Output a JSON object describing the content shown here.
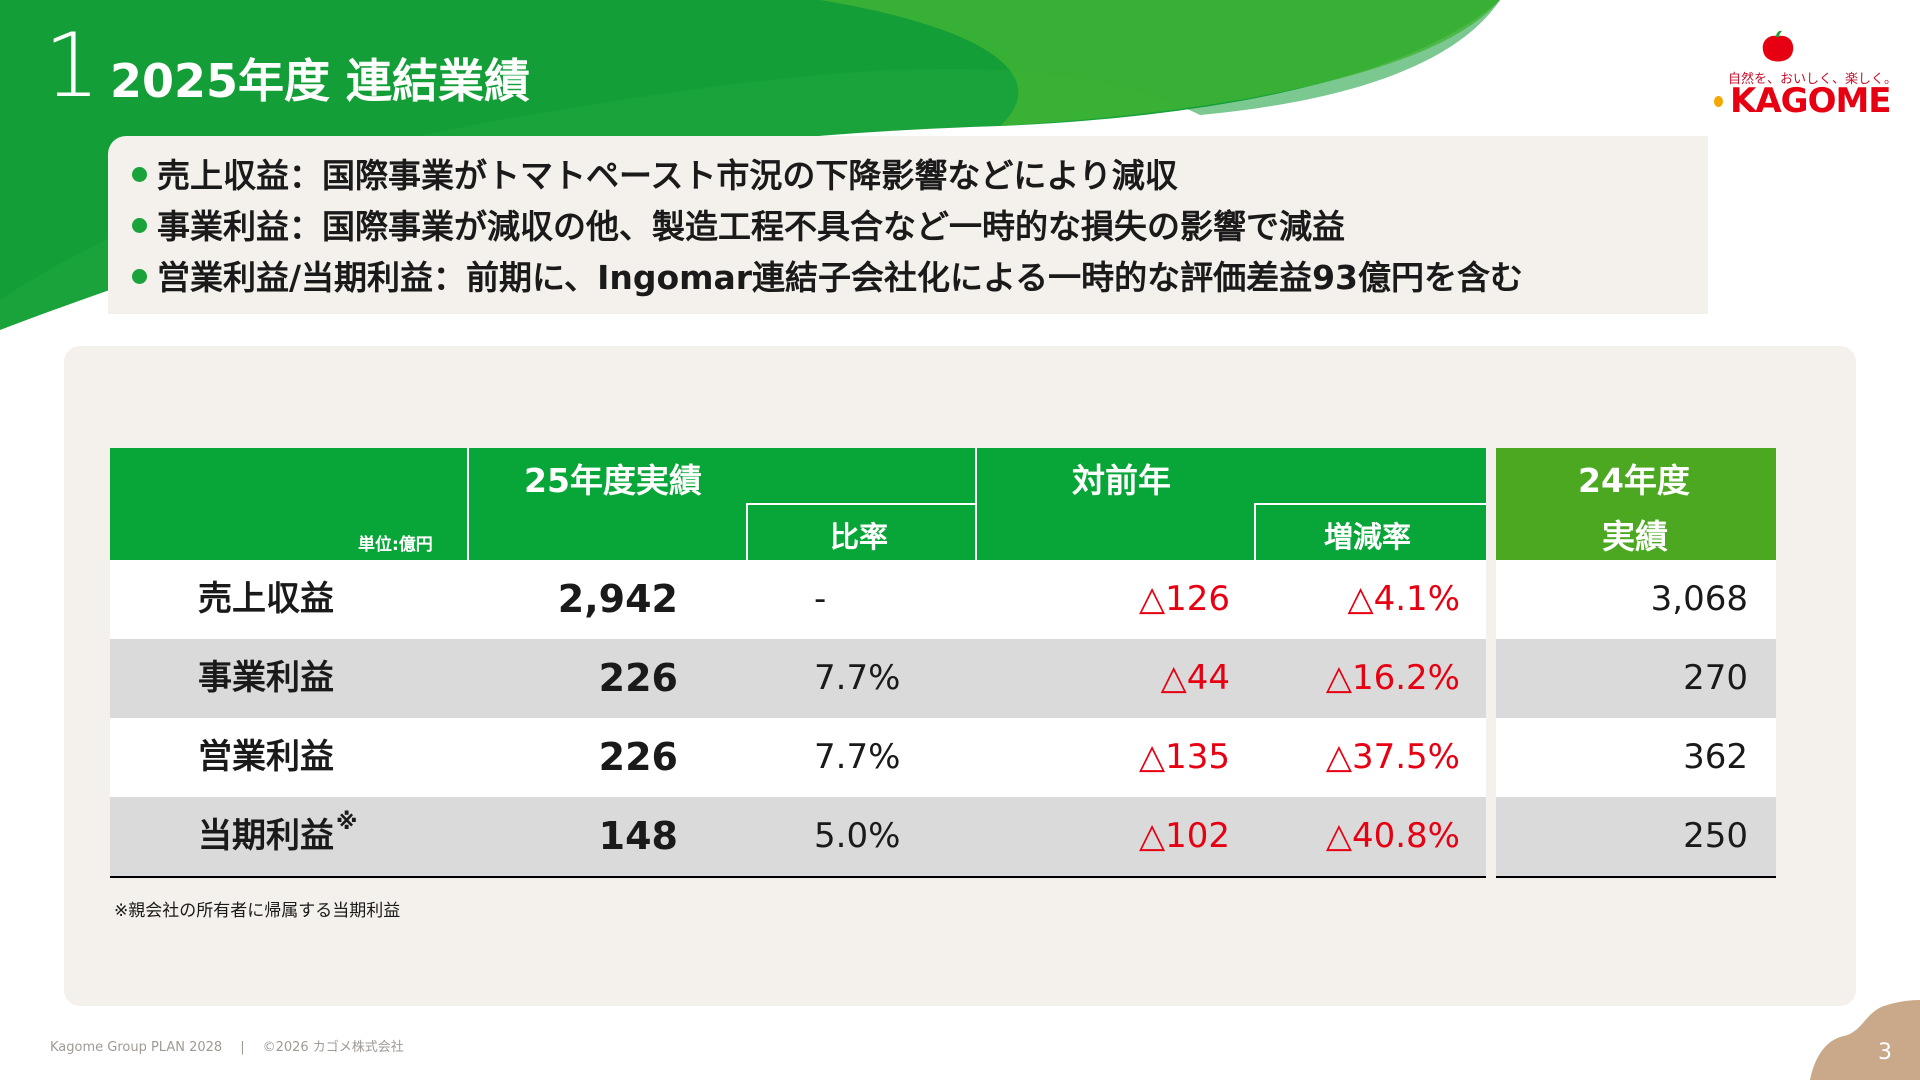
{
  "slide": {
    "section_number": "1",
    "title": "2025年度 連結業績",
    "page_number": "3"
  },
  "logo": {
    "tagline": "自然を、おいしく、楽しく。",
    "wordmark": "KAGOME"
  },
  "bullets": [
    "売上収益：国際事業がトマトペースト市況の下降影響などにより減収",
    "事業利益：国際事業が減収の他、製造工程不具合など一時的な損失の影響で減益",
    "営業利益/当期利益：前期に、Ingomar連結子会社化による一時的な評価差益93億円を含む"
  ],
  "table": {
    "unit": "単位:億円",
    "headers": {
      "fy25": "25年度実績",
      "ratio": "比率",
      "yoy": "対前年",
      "yoy_rate": "増減率",
      "fy24_line1": "24年度",
      "fy24_line2": "実績"
    },
    "rows": [
      {
        "label": "売上収益",
        "mark": "",
        "fy25": "2,942",
        "ratio": "-",
        "yoy": "△126",
        "yoy_rate": "△4.1%",
        "fy24": "3,068"
      },
      {
        "label": "事業利益",
        "mark": "",
        "fy25": "226",
        "ratio": "7.7%",
        "yoy": "△44",
        "yoy_rate": "△16.2%",
        "fy24": "270"
      },
      {
        "label": "営業利益",
        "mark": "",
        "fy25": "226",
        "ratio": "7.7%",
        "yoy": "△135",
        "yoy_rate": "△37.5%",
        "fy24": "362"
      },
      {
        "label": "当期利益",
        "mark": "※",
        "fy25": "148",
        "ratio": "5.0%",
        "yoy": "△102",
        "yoy_rate": "△40.8%",
        "fy24": "250"
      }
    ],
    "footnote": "※親会社の所有者に帰属する当期利益"
  },
  "footer": {
    "plan": "Kagome Group PLAN 2028",
    "separator": "|",
    "copyright": "©2026 カゴメ株式会社"
  },
  "colors": {
    "header_green": "#08a538",
    "fy24_green": "#4ca821",
    "negative_red": "#e60012",
    "panel_beige": "#f4f0ec",
    "brand_red": "#e60012"
  }
}
